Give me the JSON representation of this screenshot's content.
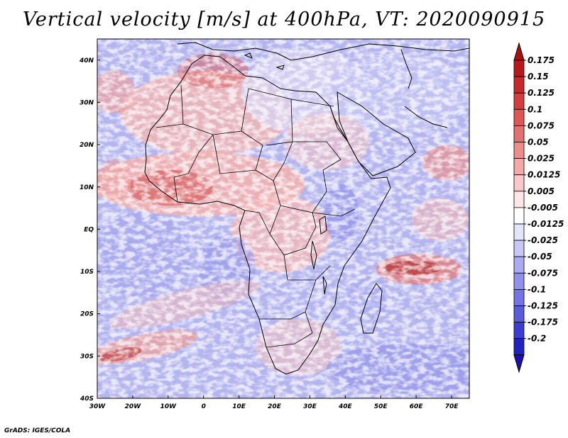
{
  "title": "Vertical velocity [m/s] at 400hPa, VT: 2020090915",
  "credit": "GrADS: IGES/COLA",
  "map": {
    "projection": "latlon",
    "lon_range": [
      -30,
      75
    ],
    "lat_range": [
      -40,
      45
    ],
    "x_ticks": [
      {
        "value": -30,
        "label": "30W"
      },
      {
        "value": -20,
        "label": "20W"
      },
      {
        "value": -10,
        "label": "10W"
      },
      {
        "value": 0,
        "label": "0"
      },
      {
        "value": 10,
        "label": "10E"
      },
      {
        "value": 20,
        "label": "20E"
      },
      {
        "value": 30,
        "label": "30E"
      },
      {
        "value": 40,
        "label": "40E"
      },
      {
        "value": 50,
        "label": "50E"
      },
      {
        "value": 60,
        "label": "60E"
      },
      {
        "value": 70,
        "label": "70E"
      }
    ],
    "y_ticks": [
      {
        "value": 40,
        "label": "40N"
      },
      {
        "value": 30,
        "label": "30N"
      },
      {
        "value": 20,
        "label": "20N"
      },
      {
        "value": 10,
        "label": "10N"
      },
      {
        "value": 0,
        "label": "EQ"
      },
      {
        "value": -10,
        "label": "10S"
      },
      {
        "value": -20,
        "label": "20S"
      },
      {
        "value": -30,
        "label": "30S"
      },
      {
        "value": -40,
        "label": "40S"
      }
    ]
  },
  "colorbar": {
    "bins": [
      {
        "label": "0.175",
        "color": "#b8181c"
      },
      {
        "label": "0.15",
        "color": "#c8282c"
      },
      {
        "label": "0.125",
        "color": "#d43c3e"
      },
      {
        "label": "0.1",
        "color": "#de5656"
      },
      {
        "label": "0.075",
        "color": "#e67070"
      },
      {
        "label": "0.05",
        "color": "#ee8c8c"
      },
      {
        "label": "0.025",
        "color": "#f4a8a8"
      },
      {
        "label": "0.0125",
        "color": "#f9c8c8"
      },
      {
        "label": "0.005",
        "color": "#fde6e6"
      },
      {
        "label": "-0.005",
        "color": "#ffffff"
      },
      {
        "label": "-0.0125",
        "color": "#e4e4fc"
      },
      {
        "label": "-0.025",
        "color": "#c8c8f8"
      },
      {
        "label": "-0.05",
        "color": "#ababf4"
      },
      {
        "label": "-0.075",
        "color": "#9090ee"
      },
      {
        "label": "-0.1",
        "color": "#7474e6"
      },
      {
        "label": "-0.125",
        "color": "#5a5ade"
      },
      {
        "label": "-0.175",
        "color": "#3c3cd2"
      },
      {
        "label": "-0.2",
        "color": "#2222c2"
      }
    ],
    "top_arrow_color": "#aa1010",
    "bottom_arrow_color": "#1a10b0"
  }
}
